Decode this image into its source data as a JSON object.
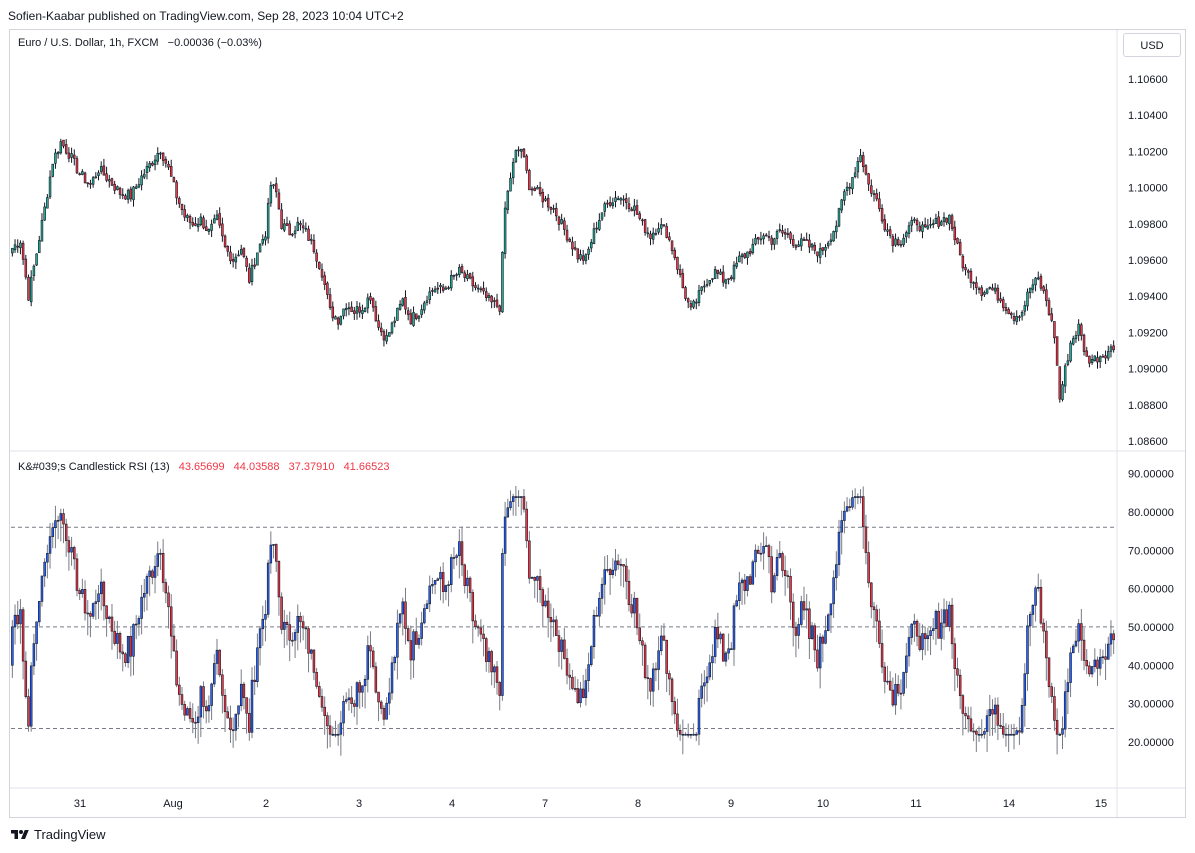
{
  "header": {
    "text": "Sofien-Kaabar published on TradingView.com, Sep 28, 2023 10:04 UTC+2"
  },
  "currency_button": "USD",
  "footer": {
    "brand": "TradingView",
    "logo_icon": "tradingview-logo-icon"
  },
  "colors": {
    "up": "#22ab94",
    "down": "#f23645",
    "rsi_up": "#2962ff",
    "rsi_down": "#f23645",
    "wick": "#131722",
    "grid": "#787b86"
  },
  "chart_data": [
    {
      "type": "candlestick",
      "title": "Euro / U.S. Dollar, 1h, FXCM",
      "change_text": "−0.00036 (−0.03%)",
      "y_ticks": [
        "1.10600",
        "1.10400",
        "1.10200",
        "1.10000",
        "1.09800",
        "1.09600",
        "1.09400",
        "1.09200",
        "1.09000",
        "1.08800",
        "1.08600"
      ],
      "ylim": [
        1.0853,
        1.1082
      ],
      "x_ticks": [
        "31",
        "Aug",
        "2",
        "3",
        "4",
        "7",
        "8",
        "9",
        "10",
        "11",
        "14",
        "15"
      ],
      "close_path": [
        [
          0,
          1.0975
        ],
        [
          3,
          1.098
        ],
        [
          6,
          1.0945
        ],
        [
          9,
          1.0972
        ],
        [
          12,
          1.1
        ],
        [
          15,
          1.103
        ],
        [
          18,
          1.1042
        ],
        [
          21,
          1.1035
        ],
        [
          25,
          1.1022
        ],
        [
          29,
          1.1015
        ],
        [
          32,
          1.1025
        ],
        [
          36,
          1.1018
        ],
        [
          40,
          1.101
        ],
        [
          44,
          1.1008
        ],
        [
          48,
          1.102
        ],
        [
          52,
          1.103
        ],
        [
          55,
          1.1038
        ],
        [
          58,
          1.1025
        ],
        [
          61,
          1.1008
        ],
        [
          64,
          1.0995
        ],
        [
          67,
          1.099
        ],
        [
          70,
          1.0993
        ],
        [
          73,
          1.0985
        ],
        [
          76,
          1.0993
        ],
        [
          79,
          1.0975
        ],
        [
          82,
          1.0968
        ],
        [
          85,
          1.0975
        ],
        [
          88,
          1.0955
        ],
        [
          91,
          1.0973
        ],
        [
          94,
          1.0985
        ],
        [
          96,
          1.1015
        ],
        [
          98,
          1.101
        ],
        [
          100,
          1.099
        ],
        [
          103,
          1.0985
        ],
        [
          106,
          1.099
        ],
        [
          109,
          1.0985
        ],
        [
          112,
          1.0975
        ],
        [
          115,
          1.096
        ],
        [
          118,
          1.0935
        ],
        [
          121,
          1.093
        ],
        [
          124,
          1.094
        ],
        [
          127,
          1.0935
        ],
        [
          130,
          1.0938
        ],
        [
          133,
          1.0945
        ],
        [
          136,
          1.0925
        ],
        [
          139,
          1.0918
        ],
        [
          142,
          1.093
        ],
        [
          145,
          1.0942
        ],
        [
          148,
          1.093
        ],
        [
          151,
          1.0935
        ],
        [
          154,
          1.0945
        ],
        [
          157,
          1.095
        ],
        [
          160,
          1.0948
        ],
        [
          163,
          1.0955
        ],
        [
          166,
          1.096
        ],
        [
          169,
          1.0955
        ],
        [
          172,
          1.095
        ],
        [
          175,
          1.0945
        ],
        [
          178,
          1.094
        ],
        [
          181,
          1.0938
        ],
        [
          183,
          1.1
        ],
        [
          185,
          1.102
        ],
        [
          187,
          1.1035
        ],
        [
          189,
          1.1038
        ],
        [
          192,
          1.1015
        ],
        [
          195,
          1.101
        ],
        [
          198,
          1.1005
        ],
        [
          201,
          1.1
        ],
        [
          204,
          1.099
        ],
        [
          207,
          1.098
        ],
        [
          210,
          1.097
        ],
        [
          213,
          1.0968
        ],
        [
          216,
          1.0985
        ],
        [
          219,
          1.0998
        ],
        [
          222,
          1.1005
        ],
        [
          225,
          1.1008
        ],
        [
          228,
          1.1005
        ],
        [
          231,
          1.1
        ],
        [
          234,
          1.099
        ],
        [
          237,
          1.0983
        ],
        [
          240,
          1.099
        ],
        [
          243,
          1.0985
        ],
        [
          246,
          1.097
        ],
        [
          249,
          1.095
        ],
        [
          252,
          1.0935
        ],
        [
          255,
          1.0945
        ],
        [
          258,
          1.0955
        ],
        [
          261,
          1.096
        ],
        [
          264,
          1.0955
        ],
        [
          267,
          1.0958
        ],
        [
          270,
          1.0968
        ],
        [
          273,
          1.0972
        ],
        [
          276,
          1.0978
        ],
        [
          279,
          1.0984
        ],
        [
          282,
          1.098
        ],
        [
          285,
          1.0985
        ],
        [
          288,
          1.0983
        ],
        [
          291,
          1.0978
        ],
        [
          294,
          1.0978
        ],
        [
          297,
          1.0975
        ],
        [
          300,
          1.0972
        ],
        [
          303,
          1.098
        ],
        [
          306,
          1.099
        ],
        [
          309,
          1.101
        ],
        [
          312,
          1.102
        ],
        [
          315,
          1.1035
        ],
        [
          318,
          1.1015
        ],
        [
          321,
          1.1005
        ],
        [
          324,
          1.099
        ],
        [
          327,
          1.098
        ],
        [
          330,
          1.098
        ],
        [
          333,
          1.0988
        ],
        [
          336,
          1.0992
        ],
        [
          339,
          1.0985
        ],
        [
          342,
          1.099
        ],
        [
          345,
          1.0993
        ],
        [
          348,
          1.0995
        ],
        [
          351,
          1.0975
        ],
        [
          354,
          1.096
        ],
        [
          357,
          1.0955
        ],
        [
          360,
          1.0948
        ],
        [
          363,
          1.095
        ],
        [
          366,
          1.0945
        ],
        [
          369,
          1.0938
        ],
        [
          372,
          1.0932
        ],
        [
          375,
          1.0935
        ],
        [
          378,
          1.095
        ],
        [
          381,
          1.0955
        ],
        [
          384,
          1.0942
        ],
        [
          387,
          1.092
        ],
        [
          389,
          1.088
        ],
        [
          391,
          1.0898
        ],
        [
          393,
          1.0915
        ],
        [
          396,
          1.0925
        ],
        [
          399,
          1.0905
        ],
        [
          402,
          1.0905
        ],
        [
          405,
          1.0908
        ],
        [
          409,
          1.0912
        ]
      ]
    },
    {
      "type": "candlestick",
      "title": "K&#039;s Candlestick RSI (13)",
      "values_text": [
        "43.65699",
        "44.03588",
        "37.37910",
        "41.66523"
      ],
      "y_ticks": [
        "90.00000",
        "80.00000",
        "70.00000",
        "60.00000",
        "50.00000",
        "40.00000",
        "30.00000",
        "20.00000"
      ],
      "ylim": [
        14.5,
        92.5
      ],
      "levels": [
        76,
        50,
        23.5
      ]
    }
  ]
}
